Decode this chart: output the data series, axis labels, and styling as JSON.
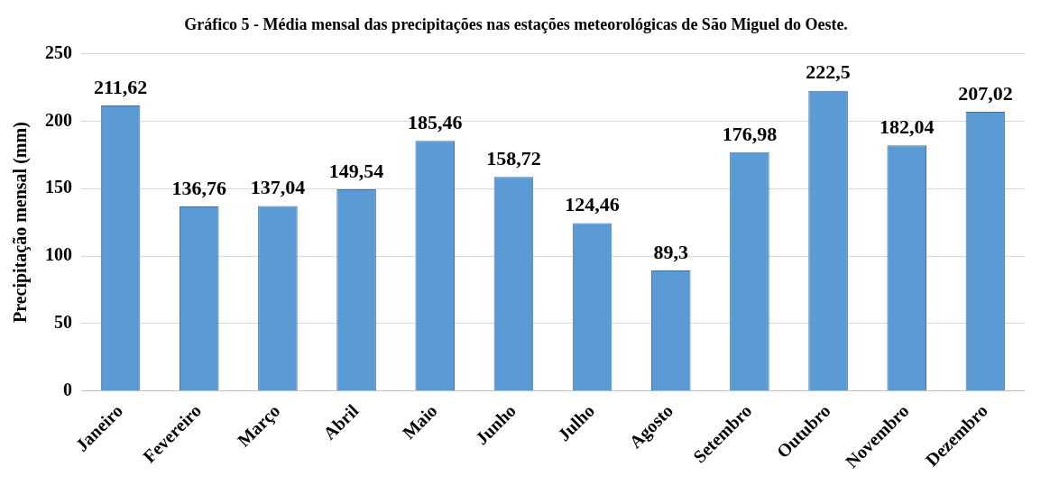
{
  "chart_data": {
    "type": "bar",
    "title": "Gráfico 5 - Média mensal das precipitações nas estações meteorológicas de São Miguel do Oeste.",
    "ylabel": "Precipitação mensal (mm)",
    "categories": [
      "Janeiro",
      "Fevereiro",
      "Março",
      "Abril",
      "Maio",
      "Junho",
      "Julho",
      "Agosto",
      "Setembro",
      "Outubro",
      "Novembro",
      "Dezembro"
    ],
    "values": [
      211.62,
      136.76,
      137.04,
      149.54,
      185.46,
      158.72,
      124.46,
      89.3,
      176.98,
      222.5,
      182.04,
      207.02
    ],
    "value_labels": [
      "211,62",
      "136,76",
      "137,04",
      "149,54",
      "185,46",
      "158,72",
      "124,46",
      "89,3",
      "176,98",
      "222,5",
      "182,04",
      "207,02"
    ],
    "color": "#5b9bd5",
    "ylim": [
      0,
      250
    ],
    "yticks": [
      0,
      50,
      100,
      150,
      200,
      250
    ],
    "grid": "y",
    "legend": false
  }
}
